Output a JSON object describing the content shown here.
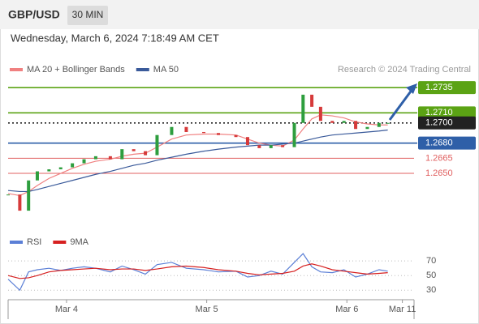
{
  "header": {
    "symbol": "GBP/USD",
    "timeframe": "30 MIN",
    "datetime": "Wednesday, March 6, 2024 7:18:49 AM CET"
  },
  "chart_data": [
    {
      "type": "candlestick",
      "note": "Research © 2024 Trading Central",
      "x": [
        0,
        4,
        7,
        10,
        14,
        18,
        22,
        26,
        30,
        35,
        39,
        43,
        47,
        51,
        56,
        61,
        67,
        72,
        78,
        82,
        86,
        90,
        94,
        98,
        101,
        104,
        107,
        111,
        115,
        119,
        123,
        127,
        130
      ],
      "values": [
        1.2629,
        1.2613,
        1.2643,
        1.2652,
        1.2654,
        1.2656,
        1.266,
        1.2664,
        1.2667,
        1.2664,
        1.2674,
        1.2672,
        1.2668,
        1.2688,
        1.2696,
        1.2691,
        1.269,
        1.2688,
        1.2686,
        1.2678,
        1.2675,
        1.2678,
        1.2676,
        1.27,
        1.2728,
        1.2716,
        1.2702,
        1.27,
        1.2702,
        1.2694,
        1.2696,
        1.27,
        1.27
      ],
      "up_color": "#2e9e3e",
      "down_color": "#d63a3a",
      "series": [
        {
          "name": "MA 20 + Bollinger Bands",
          "color": "#f08080",
          "values": [
            1.263,
            1.2628,
            1.2632,
            1.2638,
            1.2645,
            1.265,
            1.2655,
            1.2659,
            1.2662,
            1.2664,
            1.2667,
            1.2669,
            1.267,
            1.2676,
            1.2684,
            1.2688,
            1.2689,
            1.2689,
            1.2688,
            1.2684,
            1.268,
            1.2678,
            1.2677,
            1.2683,
            1.2694,
            1.2704,
            1.2708,
            1.2707,
            1.2705,
            1.2701,
            1.2699,
            1.2698,
            1.2698
          ]
        },
        {
          "name": "MA 50",
          "color": "#3a5a9a",
          "values": [
            1.2633,
            1.2632,
            1.2632,
            1.2634,
            1.2637,
            1.264,
            1.2643,
            1.2646,
            1.2649,
            1.2652,
            1.2655,
            1.2658,
            1.266,
            1.2663,
            1.2666,
            1.2669,
            1.2672,
            1.2674,
            1.2676,
            1.2677,
            1.2678,
            1.2678,
            1.2679,
            1.268,
            1.2682,
            1.2684,
            1.2686,
            1.2688,
            1.2689,
            1.269,
            1.2691,
            1.2692,
            1.2693
          ]
        }
      ],
      "levels": [
        {
          "value": 1.2735,
          "color": "#5ba314",
          "boxed": true
        },
        {
          "value": 1.271,
          "label": "1.2710",
          "color": "#5ba314",
          "boxed": true
        },
        {
          "value": 1.27,
          "label": "1.2700",
          "color": "#222222",
          "boxed": true
        },
        {
          "value": 1.268,
          "label": "1.2680",
          "color": "#2e5fa8",
          "boxed": true
        },
        {
          "value": 1.2665,
          "color": "#e06060",
          "boxed": false
        },
        {
          "value": 1.265,
          "label": "1.2650",
          "color": "#e06060",
          "boxed": false
        }
      ],
      "xlim": [
        0,
        139
      ],
      "ylim": [
        1.2593,
        1.2748
      ]
    },
    {
      "type": "line",
      "x": [
        0,
        4,
        7,
        10,
        14,
        18,
        22,
        26,
        30,
        35,
        39,
        43,
        47,
        51,
        56,
        61,
        67,
        72,
        78,
        82,
        86,
        90,
        94,
        98,
        101,
        104,
        107,
        111,
        115,
        119,
        123,
        127,
        130
      ],
      "series": [
        {
          "name": "RSI",
          "color": "#5b7fd6",
          "values": [
            45,
            30,
            55,
            58,
            60,
            57,
            60,
            62,
            60,
            55,
            63,
            58,
            52,
            65,
            68,
            60,
            58,
            55,
            56,
            48,
            50,
            56,
            52,
            68,
            80,
            62,
            55,
            54,
            58,
            48,
            52,
            58,
            56
          ]
        },
        {
          "name": "9MA",
          "color": "#d62020",
          "values": [
            50,
            46,
            47,
            50,
            55,
            57,
            58,
            59,
            60,
            58,
            59,
            59,
            57,
            59,
            62,
            63,
            61,
            58,
            56,
            53,
            51,
            52,
            53,
            56,
            63,
            66,
            63,
            58,
            56,
            54,
            52,
            53,
            54
          ]
        }
      ],
      "xlim": [
        0,
        139
      ],
      "ylim": [
        17,
        89
      ],
      "yticks": [
        70,
        50,
        30
      ],
      "grid": true,
      "xticks": [
        {
          "value": 20,
          "label": "Mar 4"
        },
        {
          "value": 68,
          "label": "Mar 5"
        },
        {
          "value": 116,
          "label": "Mar 6"
        },
        {
          "value": 135,
          "label": "Mar 11"
        }
      ]
    }
  ]
}
